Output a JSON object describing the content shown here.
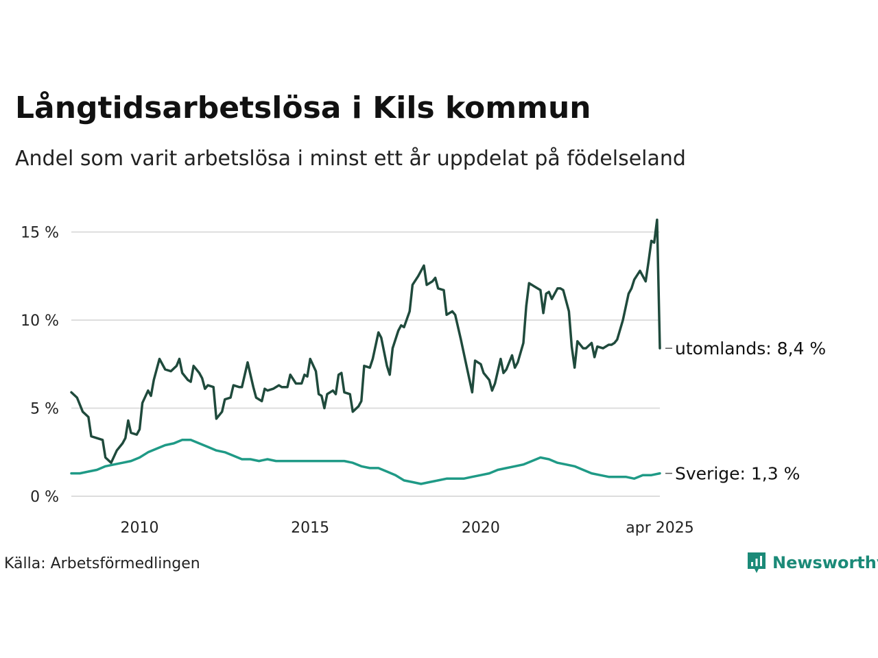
{
  "header": {
    "title": "Långtidsarbetslösa i Kils kommun",
    "subtitle": "Andel som varit arbetslösa i minst ett år uppdelat på födelseland"
  },
  "footer": {
    "source": "Källa: Arbetsförmedlingen",
    "brand": "Newsworthy"
  },
  "colors": {
    "utomlands": "#1f4a3c",
    "sverige": "#1f9a86",
    "grid": "#dddddd",
    "brand": "#1b8a78"
  },
  "chart_data": {
    "type": "line",
    "title": "Långtidsarbetslösa i Kils kommun",
    "subtitle": "Andel som varit arbetslösa i minst ett år uppdelat på födelseland",
    "xlabel": "",
    "ylabel": "",
    "xlim": [
      "2008-01",
      "2025-04"
    ],
    "ylim": [
      0,
      16.5
    ],
    "y_ticks": [
      0,
      5,
      10,
      15
    ],
    "y_tick_labels": [
      "0 %",
      "5 %",
      "10 %",
      "15 %"
    ],
    "x_ticks": [
      "2010-01",
      "2015-01",
      "2020-01",
      "2025-04"
    ],
    "x_tick_labels": [
      "2010",
      "2015",
      "2020",
      "apr 2025"
    ],
    "grid": "horizontal",
    "series": [
      {
        "name": "utomlands",
        "end_label": "utomlands: 8,4 %",
        "points": [
          [
            "2008-01",
            5.9
          ],
          [
            "2008-03",
            5.6
          ],
          [
            "2008-05",
            4.8
          ],
          [
            "2008-07",
            4.5
          ],
          [
            "2008-08",
            3.4
          ],
          [
            "2008-10",
            3.3
          ],
          [
            "2008-12",
            3.2
          ],
          [
            "2009-01",
            2.2
          ],
          [
            "2009-03",
            1.9
          ],
          [
            "2009-05",
            2.6
          ],
          [
            "2009-07",
            3.0
          ],
          [
            "2009-08",
            3.3
          ],
          [
            "2009-09",
            4.3
          ],
          [
            "2009-10",
            3.6
          ],
          [
            "2009-12",
            3.5
          ],
          [
            "2010-01",
            3.8
          ],
          [
            "2010-02",
            5.3
          ],
          [
            "2010-04",
            6.0
          ],
          [
            "2010-05",
            5.7
          ],
          [
            "2010-06",
            6.6
          ],
          [
            "2010-08",
            7.8
          ],
          [
            "2010-10",
            7.2
          ],
          [
            "2010-12",
            7.1
          ],
          [
            "2011-02",
            7.4
          ],
          [
            "2011-03",
            7.8
          ],
          [
            "2011-04",
            7.0
          ],
          [
            "2011-06",
            6.6
          ],
          [
            "2011-07",
            6.5
          ],
          [
            "2011-08",
            7.4
          ],
          [
            "2011-10",
            7.0
          ],
          [
            "2011-11",
            6.7
          ],
          [
            "2011-12",
            6.1
          ],
          [
            "2012-01",
            6.3
          ],
          [
            "2012-03",
            6.2
          ],
          [
            "2012-04",
            4.4
          ],
          [
            "2012-06",
            4.8
          ],
          [
            "2012-07",
            5.5
          ],
          [
            "2012-09",
            5.6
          ],
          [
            "2012-10",
            6.3
          ],
          [
            "2012-12",
            6.2
          ],
          [
            "2013-01",
            6.2
          ],
          [
            "2013-03",
            7.6
          ],
          [
            "2013-05",
            6.2
          ],
          [
            "2013-06",
            5.6
          ],
          [
            "2013-08",
            5.4
          ],
          [
            "2013-09",
            6.1
          ],
          [
            "2013-10",
            6.0
          ],
          [
            "2013-12",
            6.1
          ],
          [
            "2014-02",
            6.3
          ],
          [
            "2014-03",
            6.2
          ],
          [
            "2014-05",
            6.2
          ],
          [
            "2014-06",
            6.9
          ],
          [
            "2014-08",
            6.4
          ],
          [
            "2014-10",
            6.4
          ],
          [
            "2014-11",
            6.9
          ],
          [
            "2014-12",
            6.8
          ],
          [
            "2015-01",
            7.8
          ],
          [
            "2015-03",
            7.1
          ],
          [
            "2015-04",
            5.8
          ],
          [
            "2015-05",
            5.7
          ],
          [
            "2015-06",
            5.0
          ],
          [
            "2015-07",
            5.8
          ],
          [
            "2015-09",
            6.0
          ],
          [
            "2015-10",
            5.8
          ],
          [
            "2015-11",
            6.9
          ],
          [
            "2015-12",
            7.0
          ],
          [
            "2016-01",
            5.9
          ],
          [
            "2016-03",
            5.8
          ],
          [
            "2016-04",
            4.8
          ],
          [
            "2016-06",
            5.1
          ],
          [
            "2016-07",
            5.4
          ],
          [
            "2016-08",
            7.4
          ],
          [
            "2016-10",
            7.3
          ],
          [
            "2016-11",
            7.8
          ],
          [
            "2017-01",
            9.3
          ],
          [
            "2017-02",
            9.0
          ],
          [
            "2017-04",
            7.4
          ],
          [
            "2017-05",
            6.9
          ],
          [
            "2017-06",
            8.4
          ],
          [
            "2017-08",
            9.4
          ],
          [
            "2017-09",
            9.7
          ],
          [
            "2017-10",
            9.6
          ],
          [
            "2017-12",
            10.5
          ],
          [
            "2018-01",
            12.0
          ],
          [
            "2018-03",
            12.5
          ],
          [
            "2018-05",
            13.1
          ],
          [
            "2018-06",
            12.0
          ],
          [
            "2018-08",
            12.2
          ],
          [
            "2018-09",
            12.4
          ],
          [
            "2018-10",
            11.8
          ],
          [
            "2018-12",
            11.7
          ],
          [
            "2019-01",
            10.3
          ],
          [
            "2019-03",
            10.5
          ],
          [
            "2019-04",
            10.3
          ],
          [
            "2019-06",
            8.9
          ],
          [
            "2019-08",
            7.4
          ],
          [
            "2019-10",
            5.9
          ],
          [
            "2019-11",
            7.7
          ],
          [
            "2020-01",
            7.5
          ],
          [
            "2020-02",
            7.0
          ],
          [
            "2020-04",
            6.6
          ],
          [
            "2020-05",
            6.0
          ],
          [
            "2020-06",
            6.4
          ],
          [
            "2020-08",
            7.8
          ],
          [
            "2020-09",
            7.0
          ],
          [
            "2020-10",
            7.2
          ],
          [
            "2020-12",
            8.0
          ],
          [
            "2021-01",
            7.3
          ],
          [
            "2021-02",
            7.6
          ],
          [
            "2021-04",
            8.7
          ],
          [
            "2021-05",
            10.8
          ],
          [
            "2021-06",
            12.1
          ],
          [
            "2021-08",
            11.9
          ],
          [
            "2021-10",
            11.7
          ],
          [
            "2021-11",
            10.4
          ],
          [
            "2021-12",
            11.5
          ],
          [
            "2022-01",
            11.6
          ],
          [
            "2022-02",
            11.2
          ],
          [
            "2022-04",
            11.8
          ],
          [
            "2022-05",
            11.8
          ],
          [
            "2022-06",
            11.7
          ],
          [
            "2022-08",
            10.5
          ],
          [
            "2022-09",
            8.5
          ],
          [
            "2022-10",
            7.3
          ],
          [
            "2022-11",
            8.8
          ],
          [
            "2023-01",
            8.4
          ],
          [
            "2023-02",
            8.4
          ],
          [
            "2023-04",
            8.7
          ],
          [
            "2023-05",
            7.9
          ],
          [
            "2023-06",
            8.5
          ],
          [
            "2023-08",
            8.4
          ],
          [
            "2023-10",
            8.6
          ],
          [
            "2023-11",
            8.6
          ],
          [
            "2023-12",
            8.7
          ],
          [
            "2024-01",
            8.9
          ],
          [
            "2024-03",
            10.0
          ],
          [
            "2024-05",
            11.5
          ],
          [
            "2024-06",
            11.8
          ],
          [
            "2024-07",
            12.3
          ],
          [
            "2024-09",
            12.8
          ],
          [
            "2024-10",
            12.5
          ],
          [
            "2024-11",
            12.2
          ],
          [
            "2024-12",
            13.3
          ],
          [
            "2025-01",
            14.5
          ],
          [
            "2025-02",
            14.4
          ],
          [
            "2025-03",
            15.7
          ],
          [
            "2025-04",
            8.4
          ]
        ]
      },
      {
        "name": "Sverige",
        "end_label": "Sverige: 1,3 %",
        "points": [
          [
            "2008-01",
            1.3
          ],
          [
            "2008-04",
            1.3
          ],
          [
            "2008-07",
            1.4
          ],
          [
            "2008-10",
            1.5
          ],
          [
            "2009-01",
            1.7
          ],
          [
            "2009-04",
            1.8
          ],
          [
            "2009-07",
            1.9
          ],
          [
            "2009-10",
            2.0
          ],
          [
            "2010-01",
            2.2
          ],
          [
            "2010-04",
            2.5
          ],
          [
            "2010-07",
            2.7
          ],
          [
            "2010-10",
            2.9
          ],
          [
            "2011-01",
            3.0
          ],
          [
            "2011-04",
            3.2
          ],
          [
            "2011-07",
            3.2
          ],
          [
            "2011-10",
            3.0
          ],
          [
            "2012-01",
            2.8
          ],
          [
            "2012-04",
            2.6
          ],
          [
            "2012-07",
            2.5
          ],
          [
            "2012-10",
            2.3
          ],
          [
            "2013-01",
            2.1
          ],
          [
            "2013-04",
            2.1
          ],
          [
            "2013-07",
            2.0
          ],
          [
            "2013-10",
            2.1
          ],
          [
            "2014-01",
            2.0
          ],
          [
            "2014-04",
            2.0
          ],
          [
            "2014-07",
            2.0
          ],
          [
            "2014-10",
            2.0
          ],
          [
            "2015-01",
            2.0
          ],
          [
            "2015-04",
            2.0
          ],
          [
            "2015-07",
            2.0
          ],
          [
            "2015-10",
            2.0
          ],
          [
            "2016-01",
            2.0
          ],
          [
            "2016-04",
            1.9
          ],
          [
            "2016-07",
            1.7
          ],
          [
            "2016-10",
            1.6
          ],
          [
            "2017-01",
            1.6
          ],
          [
            "2017-04",
            1.4
          ],
          [
            "2017-07",
            1.2
          ],
          [
            "2017-10",
            0.9
          ],
          [
            "2018-01",
            0.8
          ],
          [
            "2018-04",
            0.7
          ],
          [
            "2018-07",
            0.8
          ],
          [
            "2018-10",
            0.9
          ],
          [
            "2019-01",
            1.0
          ],
          [
            "2019-04",
            1.0
          ],
          [
            "2019-07",
            1.0
          ],
          [
            "2019-10",
            1.1
          ],
          [
            "2020-01",
            1.2
          ],
          [
            "2020-04",
            1.3
          ],
          [
            "2020-07",
            1.5
          ],
          [
            "2020-10",
            1.6
          ],
          [
            "2021-01",
            1.7
          ],
          [
            "2021-04",
            1.8
          ],
          [
            "2021-07",
            2.0
          ],
          [
            "2021-10",
            2.2
          ],
          [
            "2022-01",
            2.1
          ],
          [
            "2022-04",
            1.9
          ],
          [
            "2022-07",
            1.8
          ],
          [
            "2022-10",
            1.7
          ],
          [
            "2023-01",
            1.5
          ],
          [
            "2023-04",
            1.3
          ],
          [
            "2023-07",
            1.2
          ],
          [
            "2023-10",
            1.1
          ],
          [
            "2024-01",
            1.1
          ],
          [
            "2024-04",
            1.1
          ],
          [
            "2024-07",
            1.0
          ],
          [
            "2024-10",
            1.2
          ],
          [
            "2025-01",
            1.2
          ],
          [
            "2025-04",
            1.3
          ]
        ]
      }
    ]
  }
}
